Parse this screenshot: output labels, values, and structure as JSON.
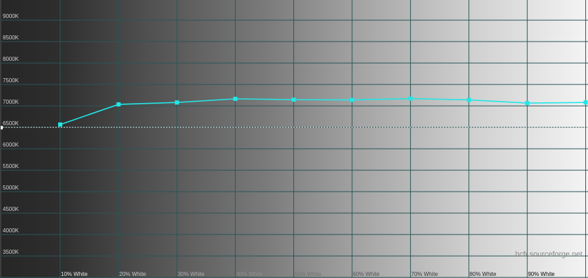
{
  "chart_data": {
    "type": "line",
    "title": "",
    "xlabel": "",
    "ylabel": "",
    "x": [
      10,
      20,
      30,
      40,
      50,
      60,
      70,
      80,
      90,
      100
    ],
    "x_tick_labels": [
      "10% White",
      "20% White",
      "30% White",
      "40% White",
      "50% White",
      "60% White",
      "70% White",
      "80% White",
      "90% White"
    ],
    "y_tick_labels": [
      "9000K",
      "8500K",
      "8000K",
      "7500K",
      "7000K",
      "6500K",
      "6000K",
      "5500K",
      "5000K",
      "4500K",
      "4000K",
      "3500K"
    ],
    "y_ticks": [
      9000,
      8500,
      8000,
      7500,
      7000,
      6500,
      6000,
      5500,
      5000,
      4500,
      4000,
      3500
    ],
    "ylim": [
      2985,
      9470
    ],
    "reference_line": {
      "value": 6500,
      "style": "dotted",
      "color": "#e0e0e0"
    },
    "series": [
      {
        "values": [
          6565,
          7035,
          7080,
          7165,
          7145,
          7140,
          7170,
          7140,
          7065,
          7080
        ],
        "color": "#22e6e6"
      }
    ],
    "grid": true,
    "legend": "none",
    "watermark": "hcfr.sourceforge.net"
  }
}
